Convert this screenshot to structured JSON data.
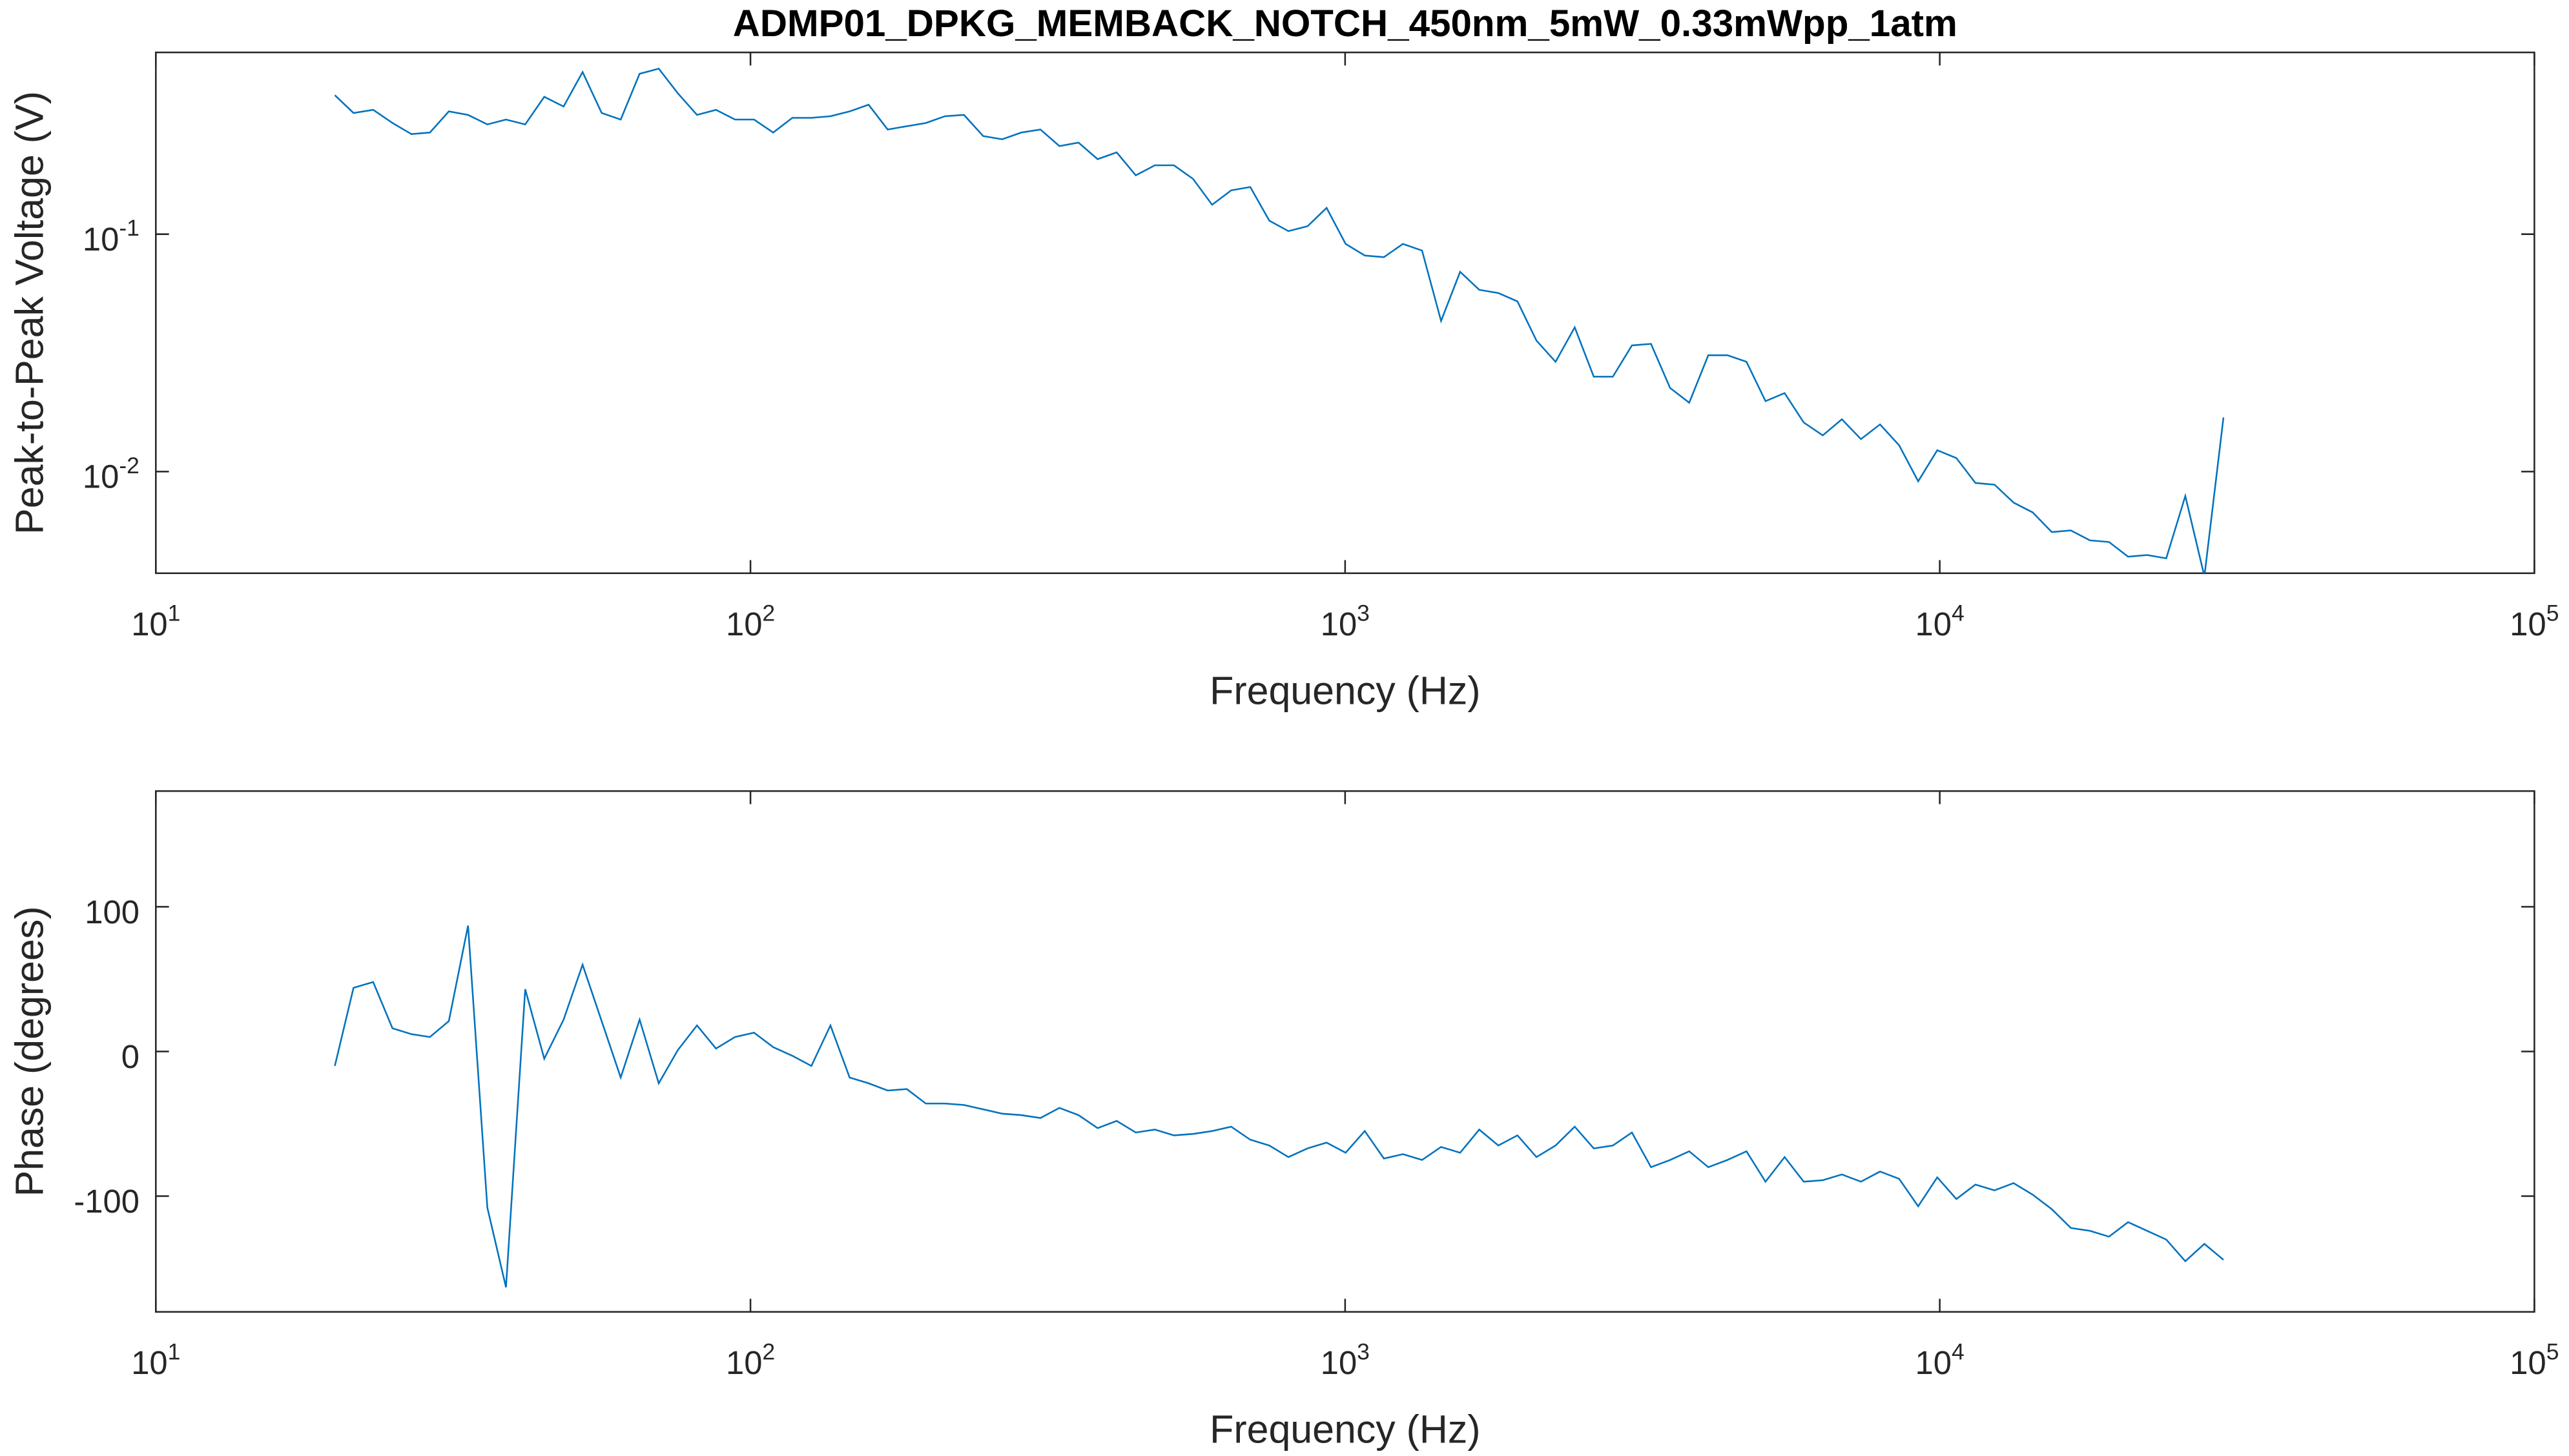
{
  "chart_data": [
    {
      "type": "line",
      "title": "ADMP01_DPKG_MEMBACK_NOTCH_450nm_5mW_0.33mWpp_1atm",
      "xlabel": "Frequency (Hz)",
      "ylabel": "Peak-to-Peak Voltage (V)",
      "xscale": "log",
      "yscale": "log",
      "color": "#0072bd",
      "xlim": [
        10,
        100000
      ],
      "xticks": [
        {
          "value": 10,
          "label": "10^1"
        },
        {
          "value": 100,
          "label": "10^2"
        },
        {
          "value": 1000,
          "label": "10^3"
        },
        {
          "value": 10000,
          "label": "10^4"
        },
        {
          "value": 100000,
          "label": "10^5"
        }
      ],
      "ylim": [
        0.00373,
        0.583
      ],
      "yticks": [
        {
          "value": 0.01,
          "label": "10^-2"
        },
        {
          "value": 0.1,
          "label": "10^-1"
        }
      ],
      "x": [
        20,
        21.5,
        23.2,
        25.0,
        26.9,
        28.9,
        31.1,
        33.5,
        36.1,
        38.8,
        41.8,
        45.0,
        48.5,
        52.2,
        56.2,
        60.5,
        65.1,
        70.1,
        75.5,
        81.3,
        87.5,
        94.2,
        101.4,
        109.2,
        117.6,
        126.6,
        136.3,
        146.8,
        158.0,
        170.1,
        183.2,
        197.2,
        212.4,
        228.6,
        246.2,
        265.1,
        285.4,
        307.3,
        330.8,
        356.2,
        383.5,
        412.9,
        444.6,
        478.7,
        515.4,
        554.9,
        597.5,
        643.3,
        692.6,
        745.7,
        802.9,
        864.5,
        930.8,
        1002,
        1079,
        1162,
        1251,
        1347,
        1450,
        1561,
        1681,
        1810,
        1949,
        2098,
        2259,
        2433,
        2619,
        2820,
        3036,
        3269,
        3520,
        3790,
        4081,
        4394,
        4731,
        5093,
        5484,
        5905,
        6357,
        6845,
        7370,
        7935,
        8544,
        9199,
        9904,
        10664,
        11482,
        12362,
        13310,
        14331,
        15430,
        16613,
        17887,
        19259,
        20736,
        22326,
        24038,
        25881,
        27866,
        30000
      ],
      "values": [
        0.385,
        0.324,
        0.334,
        0.294,
        0.264,
        0.268,
        0.329,
        0.318,
        0.29,
        0.304,
        0.29,
        0.379,
        0.345,
        0.482,
        0.324,
        0.304,
        0.474,
        0.498,
        0.392,
        0.318,
        0.334,
        0.304,
        0.304,
        0.268,
        0.309,
        0.309,
        0.314,
        0.329,
        0.351,
        0.276,
        0.285,
        0.294,
        0.314,
        0.318,
        0.259,
        0.251,
        0.268,
        0.276,
        0.235,
        0.243,
        0.207,
        0.221,
        0.177,
        0.195,
        0.195,
        0.171,
        0.133,
        0.153,
        0.158,
        0.114,
        0.103,
        0.108,
        0.129,
        0.091,
        0.0813,
        0.08,
        0.091,
        0.0853,
        0.0431,
        0.0694,
        0.0583,
        0.0565,
        0.0521,
        0.0356,
        0.029,
        0.0405,
        0.0251,
        0.0251,
        0.034,
        0.0345,
        0.0225,
        0.0195,
        0.0309,
        0.0309,
        0.029,
        0.0198,
        0.0214,
        0.0161,
        0.0142,
        0.0166,
        0.0137,
        0.0158,
        0.0129,
        0.0091,
        0.0123,
        0.0114,
        0.00895,
        0.00881,
        0.0074,
        0.00673,
        0.00556,
        0.00565,
        0.00513,
        0.00505,
        0.00438,
        0.00445,
        0.00431,
        0.00789,
        0.00362,
        0.0169
      ]
    },
    {
      "type": "line",
      "xlabel": "Frequency (Hz)",
      "ylabel": "Phase (degrees)",
      "xscale": "log",
      "yscale": "linear",
      "color": "#0072bd",
      "xlim": [
        10,
        100000
      ],
      "xticks": [
        {
          "value": 10,
          "label": "10^1"
        },
        {
          "value": 100,
          "label": "10^2"
        },
        {
          "value": 1000,
          "label": "10^3"
        },
        {
          "value": 10000,
          "label": "10^4"
        },
        {
          "value": 100000,
          "label": "10^5"
        }
      ],
      "ylim": [
        -180,
        180
      ],
      "yticks": [
        -100,
        0,
        100
      ],
      "x": [
        20,
        21.5,
        23.2,
        25.0,
        26.9,
        28.9,
        31.1,
        33.5,
        36.1,
        38.8,
        41.8,
        45.0,
        48.5,
        52.2,
        56.2,
        60.5,
        65.1,
        70.1,
        75.5,
        81.3,
        87.5,
        94.2,
        101.4,
        109.2,
        117.6,
        126.6,
        136.3,
        146.8,
        158.0,
        170.1,
        183.2,
        197.2,
        212.4,
        228.6,
        246.2,
        265.1,
        285.4,
        307.3,
        330.8,
        356.2,
        383.5,
        412.9,
        444.6,
        478.7,
        515.4,
        554.9,
        597.5,
        643.3,
        692.6,
        745.7,
        802.9,
        864.5,
        930.8,
        1002,
        1079,
        1162,
        1251,
        1347,
        1450,
        1561,
        1681,
        1810,
        1949,
        2098,
        2259,
        2433,
        2619,
        2820,
        3036,
        3269,
        3520,
        3790,
        4081,
        4394,
        4731,
        5093,
        5484,
        5905,
        6357,
        6845,
        7370,
        7935,
        8544,
        9199,
        9904,
        10664,
        11482,
        12362,
        13310,
        14331,
        15430,
        16613,
        17887,
        19259,
        20736,
        22326,
        24038,
        25881,
        27866,
        30000
      ],
      "values": [
        -10,
        44,
        48,
        16,
        12,
        10,
        21,
        87,
        -108,
        -163,
        43,
        -5,
        22,
        60,
        21,
        -18,
        22,
        -22,
        1,
        18,
        2,
        10,
        13,
        3,
        -3,
        -10,
        18,
        -18,
        -22,
        -27,
        -26,
        -36,
        -36,
        -37,
        -40,
        -43,
        -44,
        -46,
        -39,
        -44,
        -53,
        -48,
        -56,
        -54,
        -58,
        -57,
        -55,
        -52,
        -61,
        -65,
        -73,
        -67,
        -63,
        -70,
        -55,
        -74,
        -71,
        -75,
        -66,
        -70,
        -54,
        -65,
        -58,
        -73,
        -65,
        -52,
        -67,
        -65,
        -56,
        -80,
        -75,
        -69,
        -80,
        -75,
        -69,
        -90,
        -73,
        -90,
        -89,
        -85,
        -90,
        -83,
        -88,
        -107,
        -87,
        -102,
        -92,
        -96,
        -91,
        -99,
        -109,
        -122,
        -124,
        -128,
        -118,
        -124,
        -130,
        -145,
        -133,
        -144
      ]
    }
  ]
}
